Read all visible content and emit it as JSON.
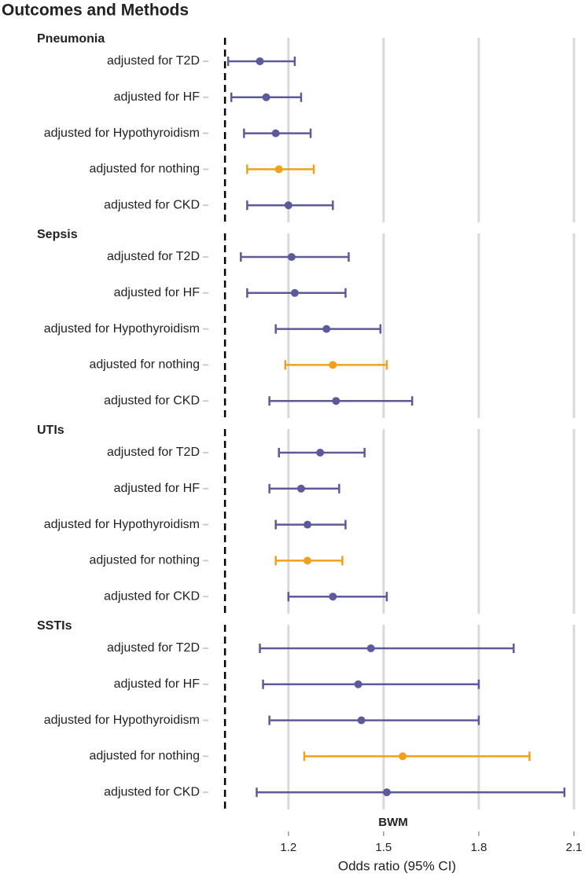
{
  "chart_data": {
    "type": "forest",
    "title": "Outcomes and Methods",
    "strip_label": "BWM",
    "xlabel": "Odds ratio (95% CI)",
    "xlim": [
      0.96,
      2.12
    ],
    "xticks": [
      1.2,
      1.5,
      1.8,
      2.1
    ],
    "reference_line": 1,
    "grid": true,
    "panels": [
      {
        "title": "Pneumonia",
        "categories": [
          "adjusted for T2D",
          "adjusted for HF",
          "adjusted for Hypothyroidism",
          "adjusted for nothing",
          "adjusted for CKD"
        ],
        "estimate": [
          1.11,
          1.13,
          1.16,
          1.17,
          1.2
        ],
        "lower": [
          1.01,
          1.02,
          1.06,
          1.07,
          1.07
        ],
        "upper": [
          1.22,
          1.24,
          1.27,
          1.28,
          1.34
        ],
        "colors": [
          "#5c5a9a",
          "#5c5a9a",
          "#5c5a9a",
          "#f0a01e",
          "#5c5a9a"
        ]
      },
      {
        "title": "Sepsis",
        "categories": [
          "adjusted for T2D",
          "adjusted for HF",
          "adjusted for Hypothyroidism",
          "adjusted for nothing",
          "adjusted for CKD"
        ],
        "estimate": [
          1.21,
          1.22,
          1.32,
          1.34,
          1.35
        ],
        "lower": [
          1.05,
          1.07,
          1.16,
          1.19,
          1.14
        ],
        "upper": [
          1.39,
          1.38,
          1.49,
          1.51,
          1.59
        ],
        "colors": [
          "#5c5a9a",
          "#5c5a9a",
          "#5c5a9a",
          "#f0a01e",
          "#5c5a9a"
        ]
      },
      {
        "title": "UTIs",
        "categories": [
          "adjusted for T2D",
          "adjusted for HF",
          "adjusted for Hypothyroidism",
          "adjusted for nothing",
          "adjusted for CKD"
        ],
        "estimate": [
          1.3,
          1.24,
          1.26,
          1.26,
          1.34
        ],
        "lower": [
          1.17,
          1.14,
          1.16,
          1.16,
          1.2
        ],
        "upper": [
          1.44,
          1.36,
          1.38,
          1.37,
          1.51
        ],
        "colors": [
          "#5c5a9a",
          "#5c5a9a",
          "#5c5a9a",
          "#f0a01e",
          "#5c5a9a"
        ]
      },
      {
        "title": "SSTIs",
        "categories": [
          "adjusted for T2D",
          "adjusted for HF",
          "adjusted for Hypothyroidism",
          "adjusted for nothing",
          "adjusted for CKD"
        ],
        "estimate": [
          1.46,
          1.42,
          1.43,
          1.56,
          1.51
        ],
        "lower": [
          1.11,
          1.12,
          1.14,
          1.25,
          1.1
        ],
        "upper": [
          1.91,
          1.8,
          1.8,
          1.96,
          2.07
        ],
        "colors": [
          "#5c5a9a",
          "#5c5a9a",
          "#5c5a9a",
          "#f0a01e",
          "#5c5a9a"
        ]
      }
    ]
  }
}
